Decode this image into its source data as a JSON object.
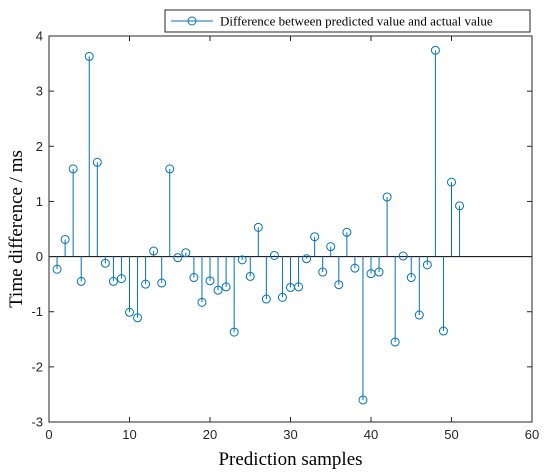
{
  "chart_data": {
    "type": "stem",
    "xlabel": "Prediction samples",
    "ylabel": "Time difference / ms",
    "xlim": [
      0,
      60
    ],
    "ylim": [
      -3,
      4
    ],
    "xticks": [
      "0",
      "10",
      "20",
      "30",
      "40",
      "50",
      "60"
    ],
    "yticks": [
      "-3",
      "-2",
      "-1",
      "0",
      "1",
      "2",
      "3",
      "4"
    ],
    "grid": false,
    "legend_position": "top-right",
    "colors": {
      "series": "#0072BD",
      "axis": "#262626",
      "baseline": "#000000"
    },
    "series": [
      {
        "name": "Difference between predicted value and actual value",
        "marker": "open-circle",
        "x": [
          1,
          2,
          3,
          4,
          5,
          6,
          7,
          8,
          9,
          10,
          11,
          12,
          13,
          14,
          15,
          16,
          17,
          18,
          19,
          20,
          21,
          22,
          23,
          24,
          25,
          26,
          27,
          28,
          29,
          30,
          31,
          32,
          33,
          34,
          35,
          36,
          37,
          38,
          39,
          40,
          41,
          42,
          43,
          44,
          45,
          46,
          47,
          48,
          49,
          50,
          51
        ],
        "values": [
          -0.23,
          0.31,
          1.59,
          -0.45,
          3.63,
          1.71,
          -0.12,
          -0.45,
          -0.4,
          -1.01,
          -1.11,
          -0.5,
          0.1,
          -0.48,
          1.59,
          -0.02,
          0.07,
          -0.38,
          -0.83,
          -0.44,
          -0.61,
          -0.55,
          -1.37,
          -0.06,
          -0.36,
          0.53,
          -0.77,
          0.02,
          -0.74,
          -0.56,
          -0.55,
          -0.04,
          0.36,
          -0.28,
          0.18,
          -0.51,
          0.44,
          -0.21,
          -2.6,
          -0.31,
          -0.28,
          1.08,
          -1.55,
          0.01,
          -0.38,
          -1.06,
          -0.15,
          3.74,
          -1.35,
          1.35,
          0.92
        ]
      }
    ]
  }
}
